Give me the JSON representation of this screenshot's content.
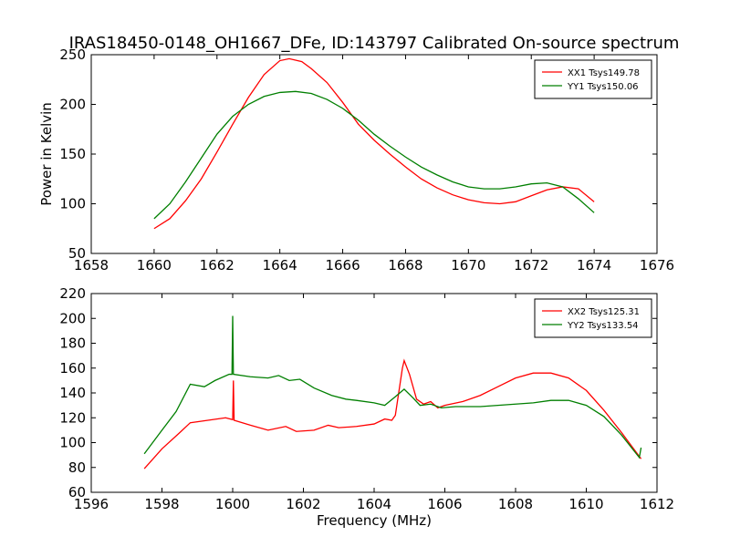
{
  "title": "IRAS18450-0148_OH1667_DFe, ID:143797 Calibrated On-source spectrum",
  "colors": {
    "red": "#ff0000",
    "green": "#007f00"
  },
  "chart_data": [
    {
      "type": "line",
      "ylabel": "Power in Kelvin",
      "xlabel": "",
      "xlim": [
        1658,
        1676
      ],
      "ylim": [
        50,
        250
      ],
      "xticks": [
        1658,
        1660,
        1662,
        1664,
        1666,
        1668,
        1670,
        1672,
        1674,
        1676
      ],
      "yticks": [
        50,
        100,
        150,
        200,
        250
      ],
      "legend_position": "top-right",
      "series": [
        {
          "name": "XX1 Tsys149.78",
          "color": "#ff0000",
          "points": [
            [
              1660,
              75
            ],
            [
              1660.5,
              85
            ],
            [
              1661,
              103
            ],
            [
              1661.5,
              125
            ],
            [
              1662,
              152
            ],
            [
              1662.5,
              180
            ],
            [
              1663,
              207
            ],
            [
              1663.5,
              230
            ],
            [
              1664,
              244
            ],
            [
              1664.3,
              246
            ],
            [
              1664.7,
              243
            ],
            [
              1665,
              236
            ],
            [
              1665.5,
              222
            ],
            [
              1666,
              202
            ],
            [
              1666.5,
              180
            ],
            [
              1667,
              164
            ],
            [
              1667.5,
              150
            ],
            [
              1668,
              137
            ],
            [
              1668.5,
              125
            ],
            [
              1669,
              116
            ],
            [
              1669.5,
              109
            ],
            [
              1670,
              104
            ],
            [
              1670.5,
              101
            ],
            [
              1671,
              100
            ],
            [
              1671.5,
              102
            ],
            [
              1672,
              108
            ],
            [
              1672.5,
              114
            ],
            [
              1673,
              117
            ],
            [
              1673.5,
              115
            ],
            [
              1674,
              102
            ]
          ]
        },
        {
          "name": "YY1 Tsys150.06",
          "color": "#007f00",
          "points": [
            [
              1660,
              85
            ],
            [
              1660.5,
              100
            ],
            [
              1661,
              122
            ],
            [
              1661.5,
              146
            ],
            [
              1662,
              170
            ],
            [
              1662.5,
              188
            ],
            [
              1663,
              200
            ],
            [
              1663.5,
              208
            ],
            [
              1664,
              212
            ],
            [
              1664.5,
              213
            ],
            [
              1665,
              211
            ],
            [
              1665.5,
              205
            ],
            [
              1666,
              196
            ],
            [
              1666.5,
              184
            ],
            [
              1667,
              170
            ],
            [
              1667.5,
              158
            ],
            [
              1668,
              147
            ],
            [
              1668.5,
              137
            ],
            [
              1669,
              129
            ],
            [
              1669.5,
              122
            ],
            [
              1670,
              117
            ],
            [
              1670.5,
              115
            ],
            [
              1671,
              115
            ],
            [
              1671.5,
              117
            ],
            [
              1672,
              120
            ],
            [
              1672.5,
              121
            ],
            [
              1673,
              117
            ],
            [
              1673.5,
              105
            ],
            [
              1674,
              91
            ]
          ]
        }
      ]
    },
    {
      "type": "line",
      "ylabel": "",
      "xlabel": "Frequency (MHz)",
      "xlim": [
        1596,
        1612
      ],
      "ylim": [
        60,
        220
      ],
      "xticks": [
        1596,
        1598,
        1600,
        1602,
        1604,
        1606,
        1608,
        1610,
        1612
      ],
      "yticks": [
        60,
        80,
        100,
        120,
        140,
        160,
        180,
        200,
        220
      ],
      "legend_position": "top-right",
      "series": [
        {
          "name": "XX2 Tsys125.31",
          "color": "#ff0000",
          "points": [
            [
              1597.5,
              79
            ],
            [
              1598,
              95
            ],
            [
              1598.5,
              108
            ],
            [
              1598.8,
              116
            ],
            [
              1599.3,
              118
            ],
            [
              1599.8,
              120
            ],
            [
              1600,
              118.5
            ],
            [
              1600.02,
              150
            ],
            [
              1600.04,
              118
            ],
            [
              1600.5,
              114
            ],
            [
              1601,
              110
            ],
            [
              1601.5,
              113
            ],
            [
              1601.8,
              109
            ],
            [
              1602.3,
              110
            ],
            [
              1602.7,
              114
            ],
            [
              1603,
              112
            ],
            [
              1603.5,
              113
            ],
            [
              1604,
              115
            ],
            [
              1604.3,
              119
            ],
            [
              1604.5,
              118
            ],
            [
              1604.6,
              122
            ],
            [
              1604.8,
              160
            ],
            [
              1604.85,
              166
            ],
            [
              1605,
              155
            ],
            [
              1605.2,
              135
            ],
            [
              1605.4,
              131
            ],
            [
              1605.6,
              133
            ],
            [
              1605.8,
              128
            ],
            [
              1606,
              130
            ],
            [
              1606.5,
              133
            ],
            [
              1607,
              138
            ],
            [
              1607.5,
              145
            ],
            [
              1608,
              152
            ],
            [
              1608.5,
              156
            ],
            [
              1609,
              156
            ],
            [
              1609.5,
              152
            ],
            [
              1610,
              142
            ],
            [
              1610.5,
              126
            ],
            [
              1611,
              108
            ],
            [
              1611.55,
              87
            ]
          ]
        },
        {
          "name": "YY2 Tsys133.54",
          "color": "#007f00",
          "points": [
            [
              1597.5,
              91
            ],
            [
              1598,
              110
            ],
            [
              1598.4,
              125
            ],
            [
              1598.8,
              147
            ],
            [
              1599.2,
              145
            ],
            [
              1599.5,
              150
            ],
            [
              1599.9,
              155
            ],
            [
              1599.98,
              155
            ],
            [
              1600,
              202
            ],
            [
              1600.02,
              155
            ],
            [
              1600.5,
              153
            ],
            [
              1601,
              152
            ],
            [
              1601.3,
              154
            ],
            [
              1601.6,
              150
            ],
            [
              1601.9,
              151
            ],
            [
              1602.3,
              144
            ],
            [
              1602.8,
              138
            ],
            [
              1603.2,
              135
            ],
            [
              1603.5,
              134
            ],
            [
              1604,
              132
            ],
            [
              1604.3,
              130
            ],
            [
              1604.6,
              137
            ],
            [
              1604.85,
              143
            ],
            [
              1605.1,
              136
            ],
            [
              1605.3,
              130
            ],
            [
              1605.6,
              131
            ],
            [
              1605.9,
              128
            ],
            [
              1606.3,
              129
            ],
            [
              1607,
              129
            ],
            [
              1607.5,
              130
            ],
            [
              1608,
              131
            ],
            [
              1608.5,
              132
            ],
            [
              1609,
              134
            ],
            [
              1609.5,
              134
            ],
            [
              1610,
              130
            ],
            [
              1610.5,
              121
            ],
            [
              1611,
              106
            ],
            [
              1611.5,
              88
            ],
            [
              1611.55,
              96
            ]
          ]
        }
      ]
    }
  ]
}
